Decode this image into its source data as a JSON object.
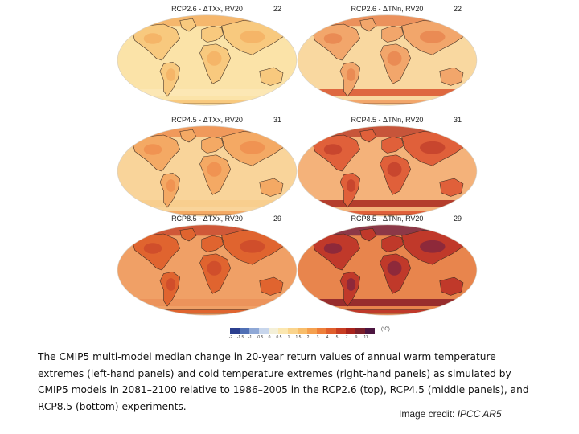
{
  "figure": {
    "panels": [
      {
        "title": "RCP2.6 - ΔTXx, RV20",
        "count": "22",
        "tone": "warm-low"
      },
      {
        "title": "RCP2.6 - ΔTNn, RV20",
        "count": "22",
        "tone": "cold-low"
      },
      {
        "title": "RCP4.5 - ΔTXx, RV20",
        "count": "31",
        "tone": "warm-mid"
      },
      {
        "title": "RCP4.5 - ΔTNn, RV20",
        "count": "31",
        "tone": "cold-mid"
      },
      {
        "title": "RCP8.5 - ΔTXx, RV20",
        "count": "29",
        "tone": "warm-high"
      },
      {
        "title": "RCP8.5 - ΔTNn, RV20",
        "count": "29",
        "tone": "cold-high"
      }
    ],
    "colorbar": {
      "ticks": [
        "-2",
        "-1.5",
        "-1",
        "-0.5",
        "0",
        "0.5",
        "1",
        "1.5",
        "2",
        "3",
        "4",
        "5",
        "7",
        "9",
        "11"
      ],
      "colors": [
        "#2b3f8f",
        "#4f6fb5",
        "#8fa8d6",
        "#c8d6ec",
        "#f4f0d8",
        "#fbe7b0",
        "#fad48c",
        "#f8bd6a",
        "#f5a04f",
        "#ee7f3a",
        "#e05e2c",
        "#c83d22",
        "#a8231c",
        "#7a1e2a",
        "#4c1540"
      ],
      "unit": "(°C)"
    }
  },
  "caption": "The CMIP5 multi-model median change in 20-year return values of annual warm temperature extremes (left-hand panels) and cold temperature extremes (right-hand panels) as simulated by CMIP5 models in 2081–2100 relative to 1986–2005 in the RCP2.6 (top), RCP4.5 (middle panels), and RCP8.5 (bottom) experiments.",
  "credit": {
    "prefix": "Image credit: ",
    "source": "IPCC AR5"
  },
  "palettes": {
    "warm-low": {
      "ocean": "#fbe3a8",
      "land": "#f8c97e",
      "hot": "#f3a85a",
      "band": "#fbe7b6"
    },
    "cold-low": {
      "ocean": "#f9d8a0",
      "land": "#f2a66b",
      "hot": "#e57a45",
      "band": "#d9552f"
    },
    "warm-mid": {
      "ocean": "#f9d49a",
      "land": "#f4a964",
      "hot": "#ec8646",
      "band": "#f8cc8c"
    },
    "cold-mid": {
      "ocean": "#f4b27a",
      "land": "#e0603a",
      "hot": "#b83526",
      "band": "#a8281e"
    },
    "warm-high": {
      "ocean": "#f0a066",
      "land": "#e0642f",
      "hot": "#c4402a",
      "band": "#eb9159"
    },
    "cold-high": {
      "ocean": "#e8854d",
      "land": "#c0392a",
      "hot": "#6d1f46",
      "band": "#8a1d28"
    }
  }
}
